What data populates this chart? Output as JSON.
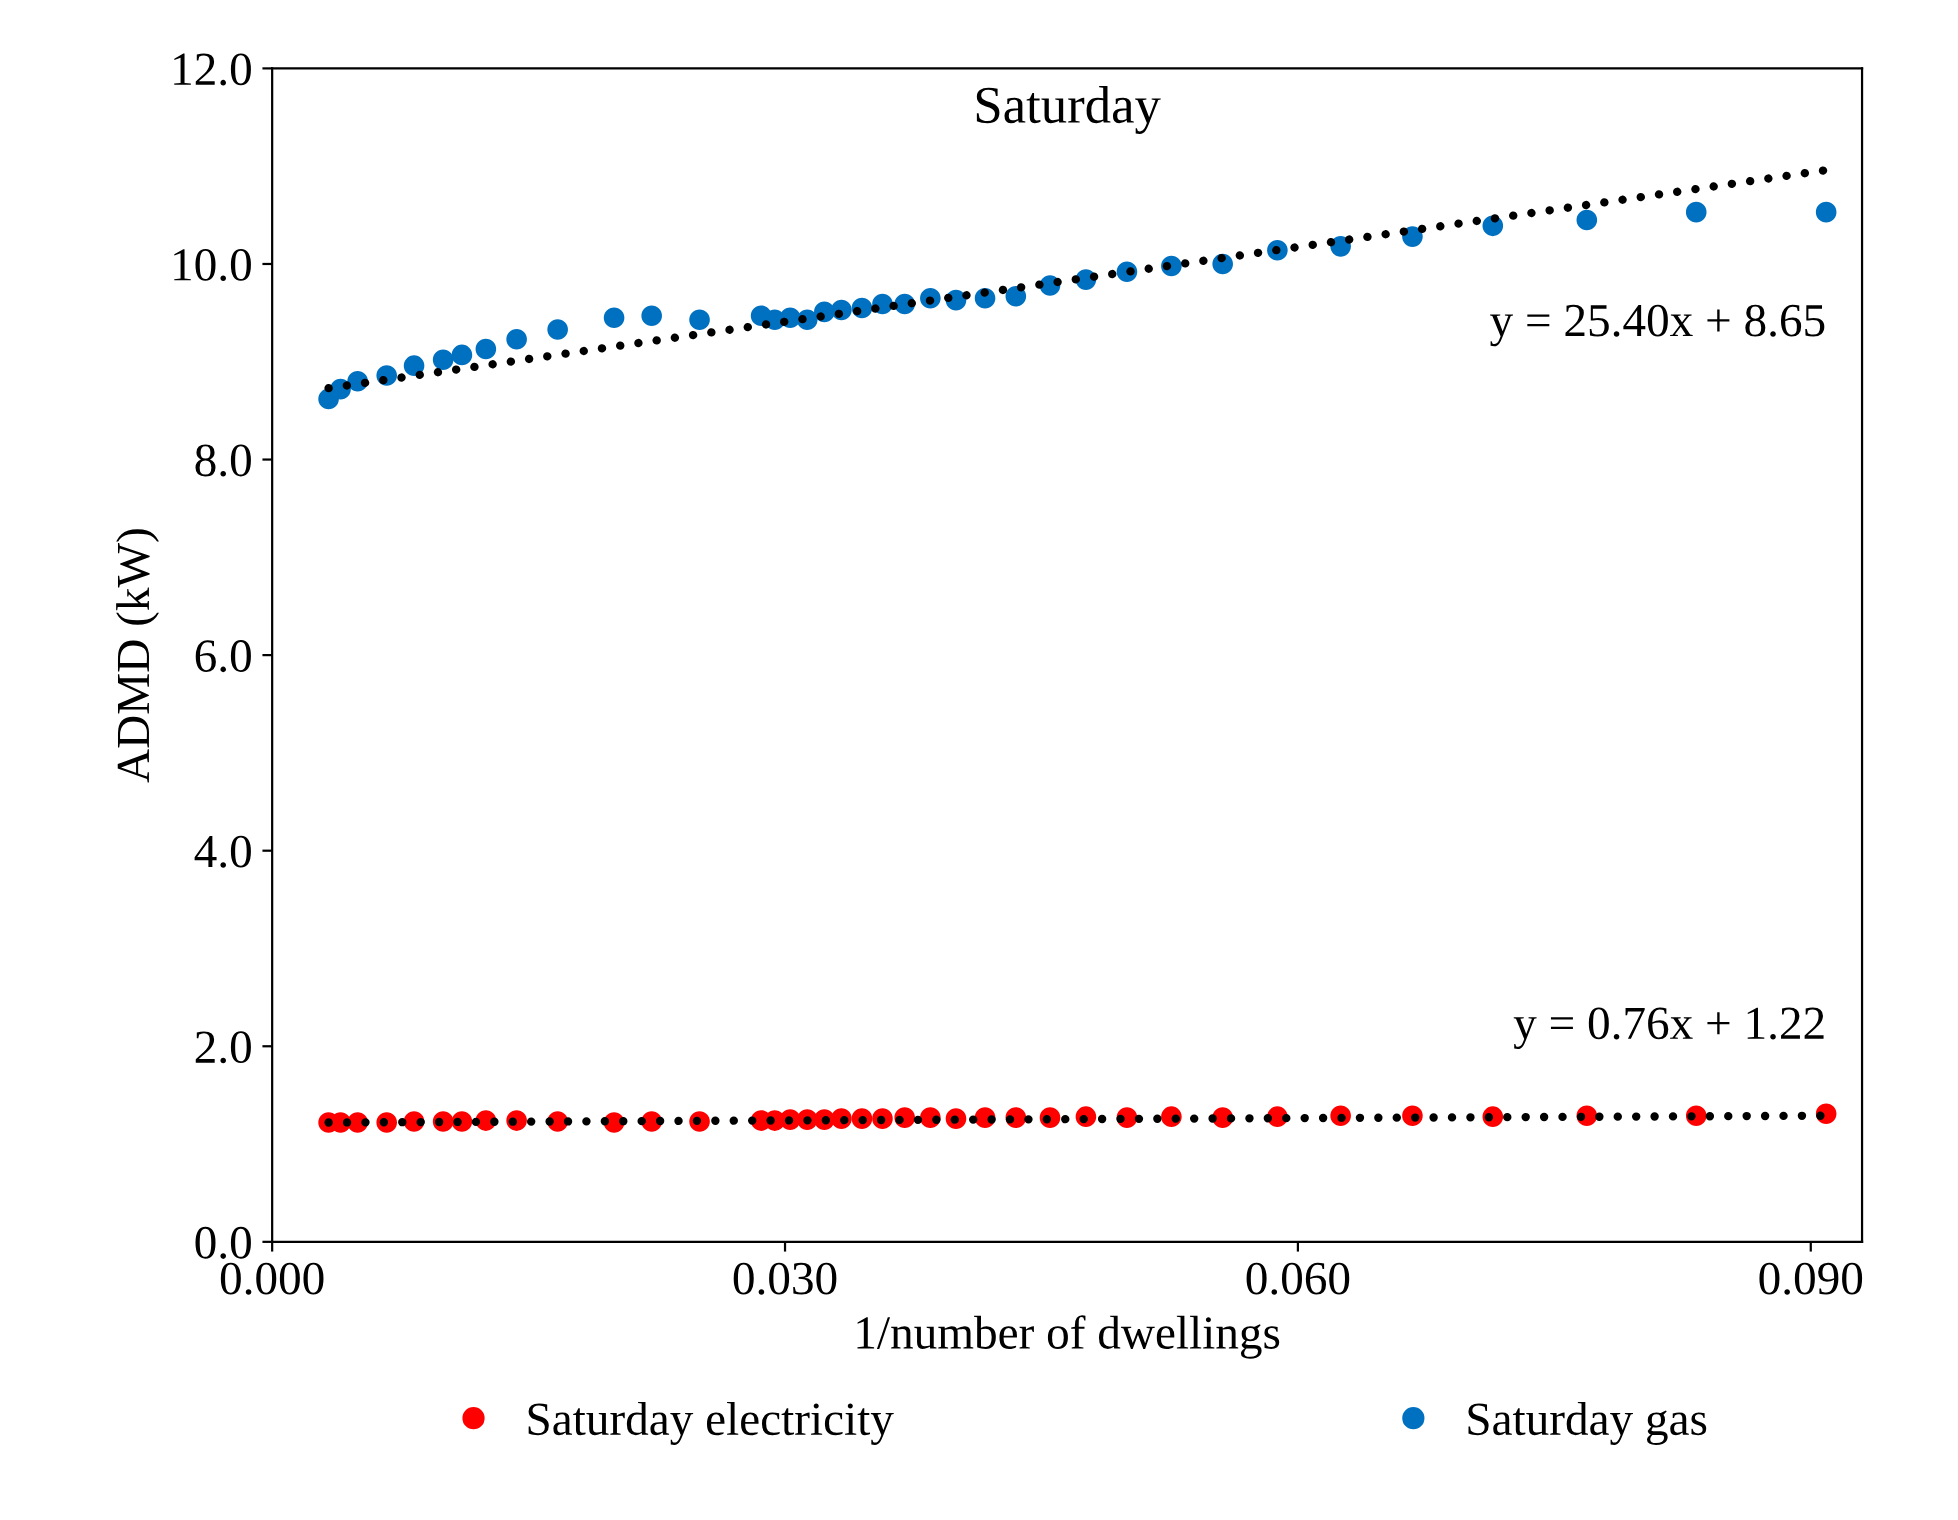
{
  "chart_data": {
    "type": "scatter",
    "title": "Saturday",
    "xlabel": "1/number of dwellings",
    "ylabel": "ADMD (kW)",
    "xlim": [
      0.0,
      0.093
    ],
    "ylim": [
      0.0,
      12.0
    ],
    "xticks": [
      {
        "value": 0.0,
        "label": "0.000"
      },
      {
        "value": 0.03,
        "label": "0.030"
      },
      {
        "value": 0.06,
        "label": "0.060"
      },
      {
        "value": 0.09,
        "label": "0.090"
      }
    ],
    "yticks": [
      {
        "value": 0,
        "label": "0.0"
      },
      {
        "value": 2,
        "label": "2.0"
      },
      {
        "value": 4,
        "label": "4.0"
      },
      {
        "value": 6,
        "label": "6.0"
      },
      {
        "value": 8,
        "label": "8.0"
      },
      {
        "value": 10,
        "label": "10.0"
      },
      {
        "value": 12,
        "label": "12.0"
      }
    ],
    "grid": false,
    "legend": "bottom",
    "marker": "circle",
    "series": [
      {
        "name": "Saturday electricity",
        "color": "#ff0000",
        "x": [
          0.0909,
          0.0833,
          0.0769,
          0.0714,
          0.0667,
          0.0625,
          0.0588,
          0.0556,
          0.0526,
          0.05,
          0.0476,
          0.0455,
          0.0435,
          0.0417,
          0.04,
          0.0385,
          0.037,
          0.0357,
          0.0345,
          0.0333,
          0.0323,
          0.0313,
          0.0303,
          0.0294,
          0.0286,
          0.025,
          0.0222,
          0.02,
          0.0167,
          0.0143,
          0.0125,
          0.0111,
          0.01,
          0.0083,
          0.0067,
          0.005,
          0.004,
          0.0033
        ],
        "values": [
          1.31,
          1.29,
          1.29,
          1.28,
          1.29,
          1.29,
          1.28,
          1.27,
          1.28,
          1.27,
          1.28,
          1.27,
          1.27,
          1.27,
          1.26,
          1.27,
          1.27,
          1.26,
          1.26,
          1.26,
          1.25,
          1.25,
          1.25,
          1.24,
          1.24,
          1.23,
          1.23,
          1.22,
          1.23,
          1.24,
          1.24,
          1.23,
          1.23,
          1.23,
          1.22,
          1.22,
          1.22,
          1.22
        ]
      },
      {
        "name": "Saturday gas",
        "color": "#0070c0",
        "x": [
          0.0909,
          0.0833,
          0.0769,
          0.0714,
          0.0667,
          0.0625,
          0.0588,
          0.0556,
          0.0526,
          0.05,
          0.0476,
          0.0455,
          0.0435,
          0.0417,
          0.04,
          0.0385,
          0.037,
          0.0357,
          0.0345,
          0.0333,
          0.0323,
          0.0313,
          0.0303,
          0.0294,
          0.0286,
          0.025,
          0.0222,
          0.02,
          0.0167,
          0.0143,
          0.0125,
          0.0111,
          0.01,
          0.0083,
          0.0067,
          0.005,
          0.004,
          0.0033
        ],
        "values": [
          10.53,
          10.53,
          10.45,
          10.39,
          10.28,
          10.18,
          10.14,
          10.0,
          9.98,
          9.92,
          9.84,
          9.78,
          9.67,
          9.65,
          9.63,
          9.65,
          9.59,
          9.59,
          9.55,
          9.53,
          9.51,
          9.43,
          9.45,
          9.43,
          9.47,
          9.43,
          9.47,
          9.45,
          9.33,
          9.23,
          9.13,
          9.07,
          9.02,
          8.96,
          8.86,
          8.8,
          8.72,
          8.62
        ]
      },
      {
        "type": "line",
        "color": "#000000",
        "line_style": "dotted",
        "marker": "none",
        "x": [
          0.0033,
          0.0909
        ],
        "values": [
          1.22,
          1.29
        ]
      },
      {
        "type": "line",
        "color": "#000000",
        "line_style": "dotted",
        "marker": "none",
        "x": [
          0.0033,
          0.0909
        ],
        "values": [
          8.73,
          10.96
        ]
      }
    ],
    "annotations": [
      {
        "text": "y = 0.76x + 1.22",
        "x": 0.0909,
        "y": 1.29
      },
      {
        "text": "y = 25.40x + 8.65",
        "x": 0.0909,
        "y": 10.96
      }
    ]
  }
}
